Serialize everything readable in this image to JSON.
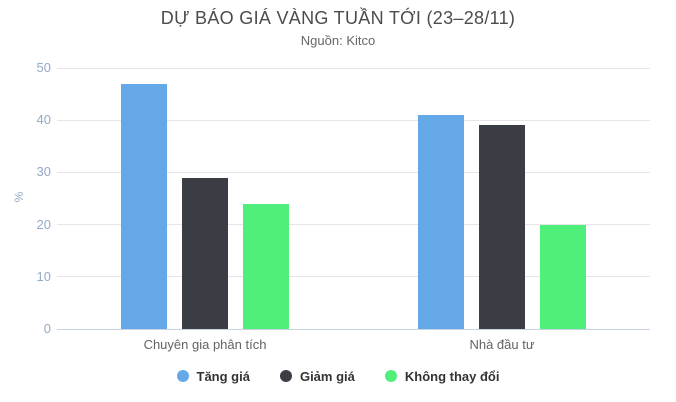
{
  "chart_data": {
    "type": "bar",
    "title": "DỰ BÁO GIÁ VÀNG TUẦN TỚI (23–28/11)",
    "subtitle": "Nguồn: Kitco",
    "categories": [
      "Chuyên gia phân tích",
      "Nhà đầu tư"
    ],
    "series": [
      {
        "name": "Tăng giá",
        "color": "#64a8e8",
        "values": [
          47,
          41
        ]
      },
      {
        "name": "Giảm giá",
        "color": "#3b3d45",
        "values": [
          29,
          39
        ]
      },
      {
        "name": "Không thay đổi",
        "color": "#50ee7b",
        "values": [
          24,
          20
        ]
      }
    ],
    "xlabel": "",
    "ylabel": "%",
    "ylim": [
      0,
      50
    ],
    "yticks": [
      0,
      10,
      20,
      30,
      40,
      50
    ],
    "grid": true,
    "legend_position": "bottom"
  },
  "colors": {
    "title": "#4c4c4c",
    "subtitle": "#666666",
    "axis_labels": "#94a9c7",
    "category_labels": "#606467",
    "legend_text": "#333333",
    "gridline": "#e6e6ea",
    "axis_line": "#c8d4e2",
    "background": "#ffffff"
  }
}
